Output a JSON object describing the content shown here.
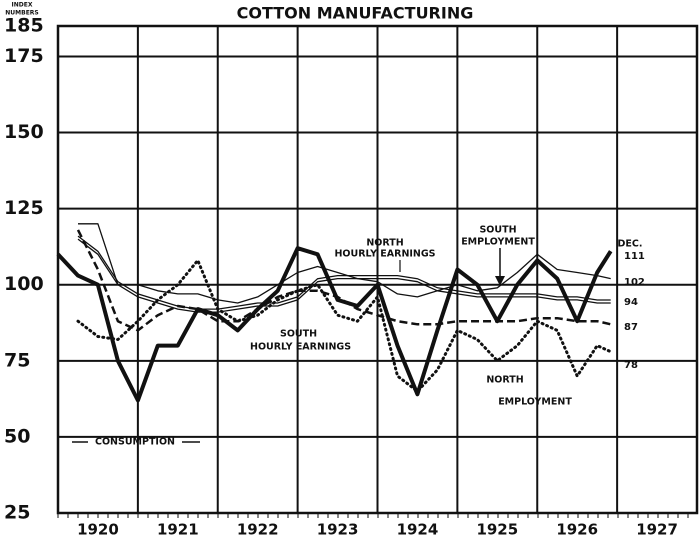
{
  "chart_data": {
    "type": "line",
    "title": "COTTON MANUFACTURING",
    "y_label": [
      "INDEX",
      "NUMBERS"
    ],
    "xlim": [
      1920,
      1928
    ],
    "xticks": [
      {
        "value": 1920.5,
        "label": "1920"
      },
      {
        "value": 1921.5,
        "label": "1921"
      },
      {
        "value": 1922.5,
        "label": "1922"
      },
      {
        "value": 1923.5,
        "label": "1923"
      },
      {
        "value": 1924.5,
        "label": "1924"
      },
      {
        "value": 1925.5,
        "label": "1925"
      },
      {
        "value": 1926.5,
        "label": "1926"
      },
      {
        "value": 1927.5,
        "label": "1927"
      }
    ],
    "xgrid": [
      1921,
      1922,
      1923,
      1924,
      1925,
      1926,
      1927
    ],
    "ylim": [
      25,
      185
    ],
    "yticks": [
      25,
      50,
      75,
      100,
      125,
      150,
      175,
      185
    ],
    "grid": true,
    "x": [
      1920,
      1920.25,
      1920.5,
      1920.75,
      1921,
      1921.25,
      1921.5,
      1921.75,
      1922,
      1922.25,
      1922.5,
      1922.75,
      1923,
      1923.25,
      1923.5,
      1923.75,
      1924,
      1924.25,
      1924.5,
      1924.75,
      1925,
      1925.25,
      1925.5,
      1925.75,
      1926,
      1926.25,
      1926.5,
      1926.75,
      1926.92
    ],
    "series": [
      {
        "name": "CONSUMPTION",
        "color": "#111",
        "style": "thick",
        "values": [
          110,
          103,
          100,
          75,
          62,
          80,
          80,
          92,
          90,
          85,
          92,
          98,
          112,
          110,
          95,
          93,
          100,
          80,
          64,
          85,
          105,
          100,
          88,
          100,
          108,
          102,
          88,
          104,
          111
        ]
      },
      {
        "name": "SOUTH EMPLOYMENT",
        "color": "#111",
        "style": "solid",
        "values": [
          null,
          120,
          120,
          100,
          100,
          98,
          97,
          97,
          95,
          94,
          96,
          100,
          104,
          106,
          104,
          102,
          101,
          97,
          96,
          98,
          100,
          98,
          99,
          104,
          110,
          105,
          104,
          103,
          102
        ]
      },
      {
        "name": "NORTH HOURLY EARNINGS",
        "color": "#111",
        "style": "double",
        "values": [
          null,
          115,
          110,
          100,
          96,
          94,
          92,
          91,
          91,
          92,
          93,
          93,
          95,
          101,
          102,
          102,
          102,
          102,
          101,
          98,
          97,
          96,
          96,
          96,
          96,
          95,
          95,
          94,
          94
        ]
      },
      {
        "name": "SOUTH HOURLY EARNINGS",
        "color": "#111",
        "style": "dash",
        "values": [
          null,
          118,
          105,
          88,
          85,
          90,
          93,
          92,
          88,
          88,
          92,
          96,
          98,
          98,
          96,
          92,
          90,
          88,
          87,
          87,
          88,
          88,
          88,
          88,
          89,
          89,
          88,
          88,
          87
        ]
      },
      {
        "name": "NORTH EMPLOYMENT",
        "color": "#111",
        "style": "dot",
        "values": [
          null,
          88,
          83,
          82,
          88,
          95,
          100,
          108,
          92,
          88,
          90,
          95,
          98,
          100,
          90,
          88,
          96,
          70,
          65,
          72,
          85,
          82,
          75,
          80,
          88,
          85,
          70,
          80,
          78
        ]
      }
    ],
    "annotations": [
      "NORTH",
      "HOURLY EARNINGS",
      "SOUTH",
      "HOURLY EARNINGS",
      "SOUTH",
      "EMPLOYMENT",
      "NORTH",
      "EMPLOYMENT",
      "CONSUMPTION",
      "DEC."
    ]
  }
}
